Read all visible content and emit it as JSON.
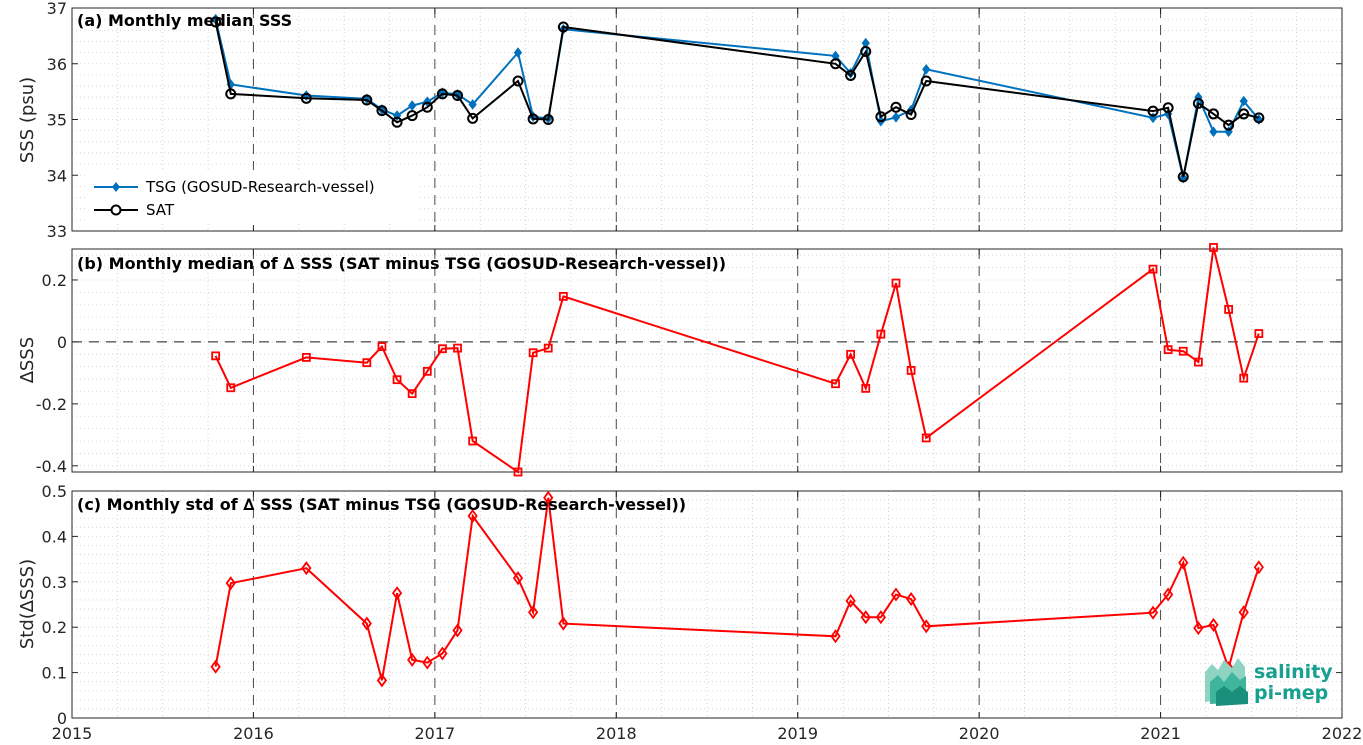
{
  "chart_data": [
    {
      "type": "line",
      "title": "(a) Monthly median SSS",
      "xlabel": "",
      "ylabel": "SSS (psu)",
      "xlim": [
        2015,
        2022
      ],
      "ylim": [
        33,
        37
      ],
      "xticks": [
        "2015",
        "2016",
        "2017",
        "2018",
        "2019",
        "2020",
        "2021",
        "2022"
      ],
      "yticks": [
        "33",
        "34",
        "35",
        "36",
        "37"
      ],
      "grid": "dotted",
      "legend_position": "lower-left",
      "x": [
        "2015-10",
        "2015-11",
        "2016-04",
        "2016-08",
        "2016-09",
        "2016-10",
        "2016-11",
        "2016-12",
        "2017-01",
        "2017-02",
        "2017-03",
        "2017-06",
        "2017-07",
        "2017-08",
        "2017-09",
        "2019-03",
        "2019-04",
        "2019-05",
        "2019-06",
        "2019-07",
        "2019-08",
        "2019-09",
        "2020-12",
        "2021-01",
        "2021-02",
        "2021-03",
        "2021-04",
        "2021-05",
        "2021-06",
        "2021-07"
      ],
      "series": [
        {
          "name": "TSG (GOSUD-Research-vessel)",
          "color": "#0072bd",
          "marker": "diamond-filled",
          "values": [
            36.8,
            35.63,
            35.43,
            35.37,
            35.18,
            35.07,
            35.25,
            35.32,
            35.48,
            35.45,
            35.27,
            36.2,
            35.05,
            35.02,
            36.62,
            36.14,
            35.83,
            36.37,
            34.97,
            35.04,
            35.17,
            35.9,
            35.03,
            35.1,
            33.95,
            35.4,
            34.78,
            34.78,
            35.33,
            35.0
          ]
        },
        {
          "name": "SAT",
          "color": "#000000",
          "marker": "circle-open",
          "values": [
            36.75,
            35.46,
            35.38,
            35.35,
            35.16,
            34.95,
            35.07,
            35.22,
            35.46,
            35.43,
            35.02,
            35.69,
            35.01,
            35.0,
            36.66,
            36.0,
            35.79,
            36.22,
            35.05,
            35.22,
            35.09,
            35.69,
            35.15,
            35.21,
            33.97,
            35.29,
            35.1,
            34.9,
            35.1,
            35.03
          ]
        }
      ]
    },
    {
      "type": "line",
      "title": "(b) Monthly median of ∆ SSS (SAT minus TSG (GOSUD-Research-vessel))",
      "xlabel": "",
      "ylabel": "∆SSS",
      "xlim": [
        2015,
        2022
      ],
      "ylim": [
        -0.42,
        0.3
      ],
      "yticks": [
        "0.2",
        "0",
        "-0.2",
        "-0.4"
      ],
      "grid": "dotted",
      "zero_line": "dashed",
      "x": [
        "2015-10",
        "2015-11",
        "2016-04",
        "2016-08",
        "2016-09",
        "2016-10",
        "2016-11",
        "2016-12",
        "2017-01",
        "2017-02",
        "2017-03",
        "2017-06",
        "2017-07",
        "2017-08",
        "2017-09",
        "2019-03",
        "2019-04",
        "2019-05",
        "2019-06",
        "2019-07",
        "2019-08",
        "2019-09",
        "2020-12",
        "2021-01",
        "2021-02",
        "2021-03",
        "2021-04",
        "2021-05",
        "2021-06",
        "2021-07"
      ],
      "series": [
        {
          "name": "",
          "color": "#ff0000",
          "marker": "square-open",
          "values": [
            -0.045,
            -0.148,
            -0.05,
            -0.067,
            -0.015,
            -0.122,
            -0.167,
            -0.095,
            -0.022,
            -0.02,
            -0.32,
            -0.42,
            -0.035,
            -0.02,
            0.147,
            -0.135,
            -0.04,
            -0.15,
            0.025,
            0.19,
            -0.092,
            -0.31,
            0.235,
            -0.025,
            -0.03,
            -0.065,
            0.305,
            0.105,
            -0.117,
            0.027
          ]
        }
      ]
    },
    {
      "type": "line",
      "title": "(c) Monthly std of ∆ SSS (SAT minus TSG (GOSUD-Research-vessel))",
      "xlabel": "",
      "ylabel": "Std(∆SSS)",
      "xlim": [
        2015,
        2022
      ],
      "ylim": [
        0,
        0.5
      ],
      "yticks": [
        "0",
        "0.1",
        "0.2",
        "0.3",
        "0.4",
        "0.5"
      ],
      "grid": "dotted",
      "x": [
        "2015-10",
        "2015-11",
        "2016-04",
        "2016-08",
        "2016-09",
        "2016-10",
        "2016-11",
        "2016-12",
        "2017-01",
        "2017-02",
        "2017-03",
        "2017-06",
        "2017-07",
        "2017-08",
        "2017-09",
        "2019-03",
        "2019-04",
        "2019-05",
        "2019-06",
        "2019-07",
        "2019-08",
        "2019-09",
        "2020-12",
        "2021-01",
        "2021-02",
        "2021-03",
        "2021-04",
        "2021-05",
        "2021-06",
        "2021-07"
      ],
      "series": [
        {
          "name": "",
          "color": "#ff0000",
          "marker": "diamond-open",
          "values": [
            0.113,
            0.297,
            0.33,
            0.208,
            0.083,
            0.275,
            0.128,
            0.122,
            0.142,
            0.193,
            0.445,
            0.308,
            0.233,
            0.485,
            0.208,
            0.18,
            0.258,
            0.222,
            0.222,
            0.272,
            0.262,
            0.202,
            0.232,
            0.272,
            0.342,
            0.198,
            0.205,
            0.11,
            0.233,
            0.332
          ]
        }
      ]
    }
  ],
  "logo": {
    "line1": "salinity",
    "line2": "pi-mep",
    "color": "#17a08f"
  }
}
